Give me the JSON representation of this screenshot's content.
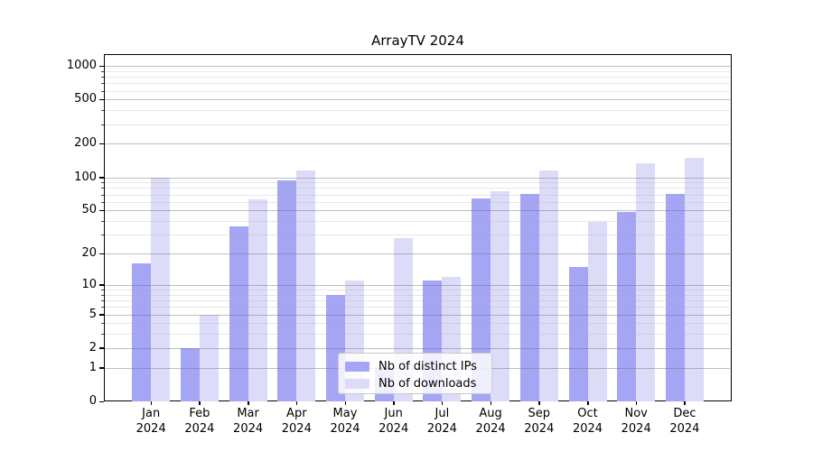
{
  "chart_data": {
    "type": "bar",
    "title": "ArrayTV 2024",
    "months": [
      {
        "m": "Jan",
        "y": "2024"
      },
      {
        "m": "Feb",
        "y": "2024"
      },
      {
        "m": "Mar",
        "y": "2024"
      },
      {
        "m": "Apr",
        "y": "2024"
      },
      {
        "m": "May",
        "y": "2024"
      },
      {
        "m": "Jun",
        "y": "2024"
      },
      {
        "m": "Jul",
        "y": "2024"
      },
      {
        "m": "Aug",
        "y": "2024"
      },
      {
        "m": "Sep",
        "y": "2024"
      },
      {
        "m": "Oct",
        "y": "2024"
      },
      {
        "m": "Nov",
        "y": "2024"
      },
      {
        "m": "Dec",
        "y": "2024"
      }
    ],
    "series": [
      {
        "name": "Nb of distinct IPs",
        "color": "#a5a5f6",
        "values": [
          16,
          2,
          36,
          93,
          8,
          1,
          11,
          64,
          70,
          15,
          48,
          70
        ]
      },
      {
        "name": "Nb of downloads",
        "color": "#dcdcf9",
        "values": [
          100,
          5,
          63,
          115,
          11,
          28,
          12,
          75,
          115,
          39,
          133,
          150
        ]
      }
    ],
    "y_axis": {
      "scale": "log1p",
      "major_ticks": [
        0,
        1,
        2,
        5,
        10,
        20,
        50,
        100,
        200,
        500,
        1000
      ],
      "minor_ticks": [
        3,
        4,
        6,
        7,
        8,
        9,
        30,
        40,
        60,
        70,
        80,
        90,
        300,
        400,
        600,
        700,
        800,
        900
      ],
      "top_value": 1270
    },
    "legend": {
      "position": "lower center"
    },
    "grid": true
  }
}
